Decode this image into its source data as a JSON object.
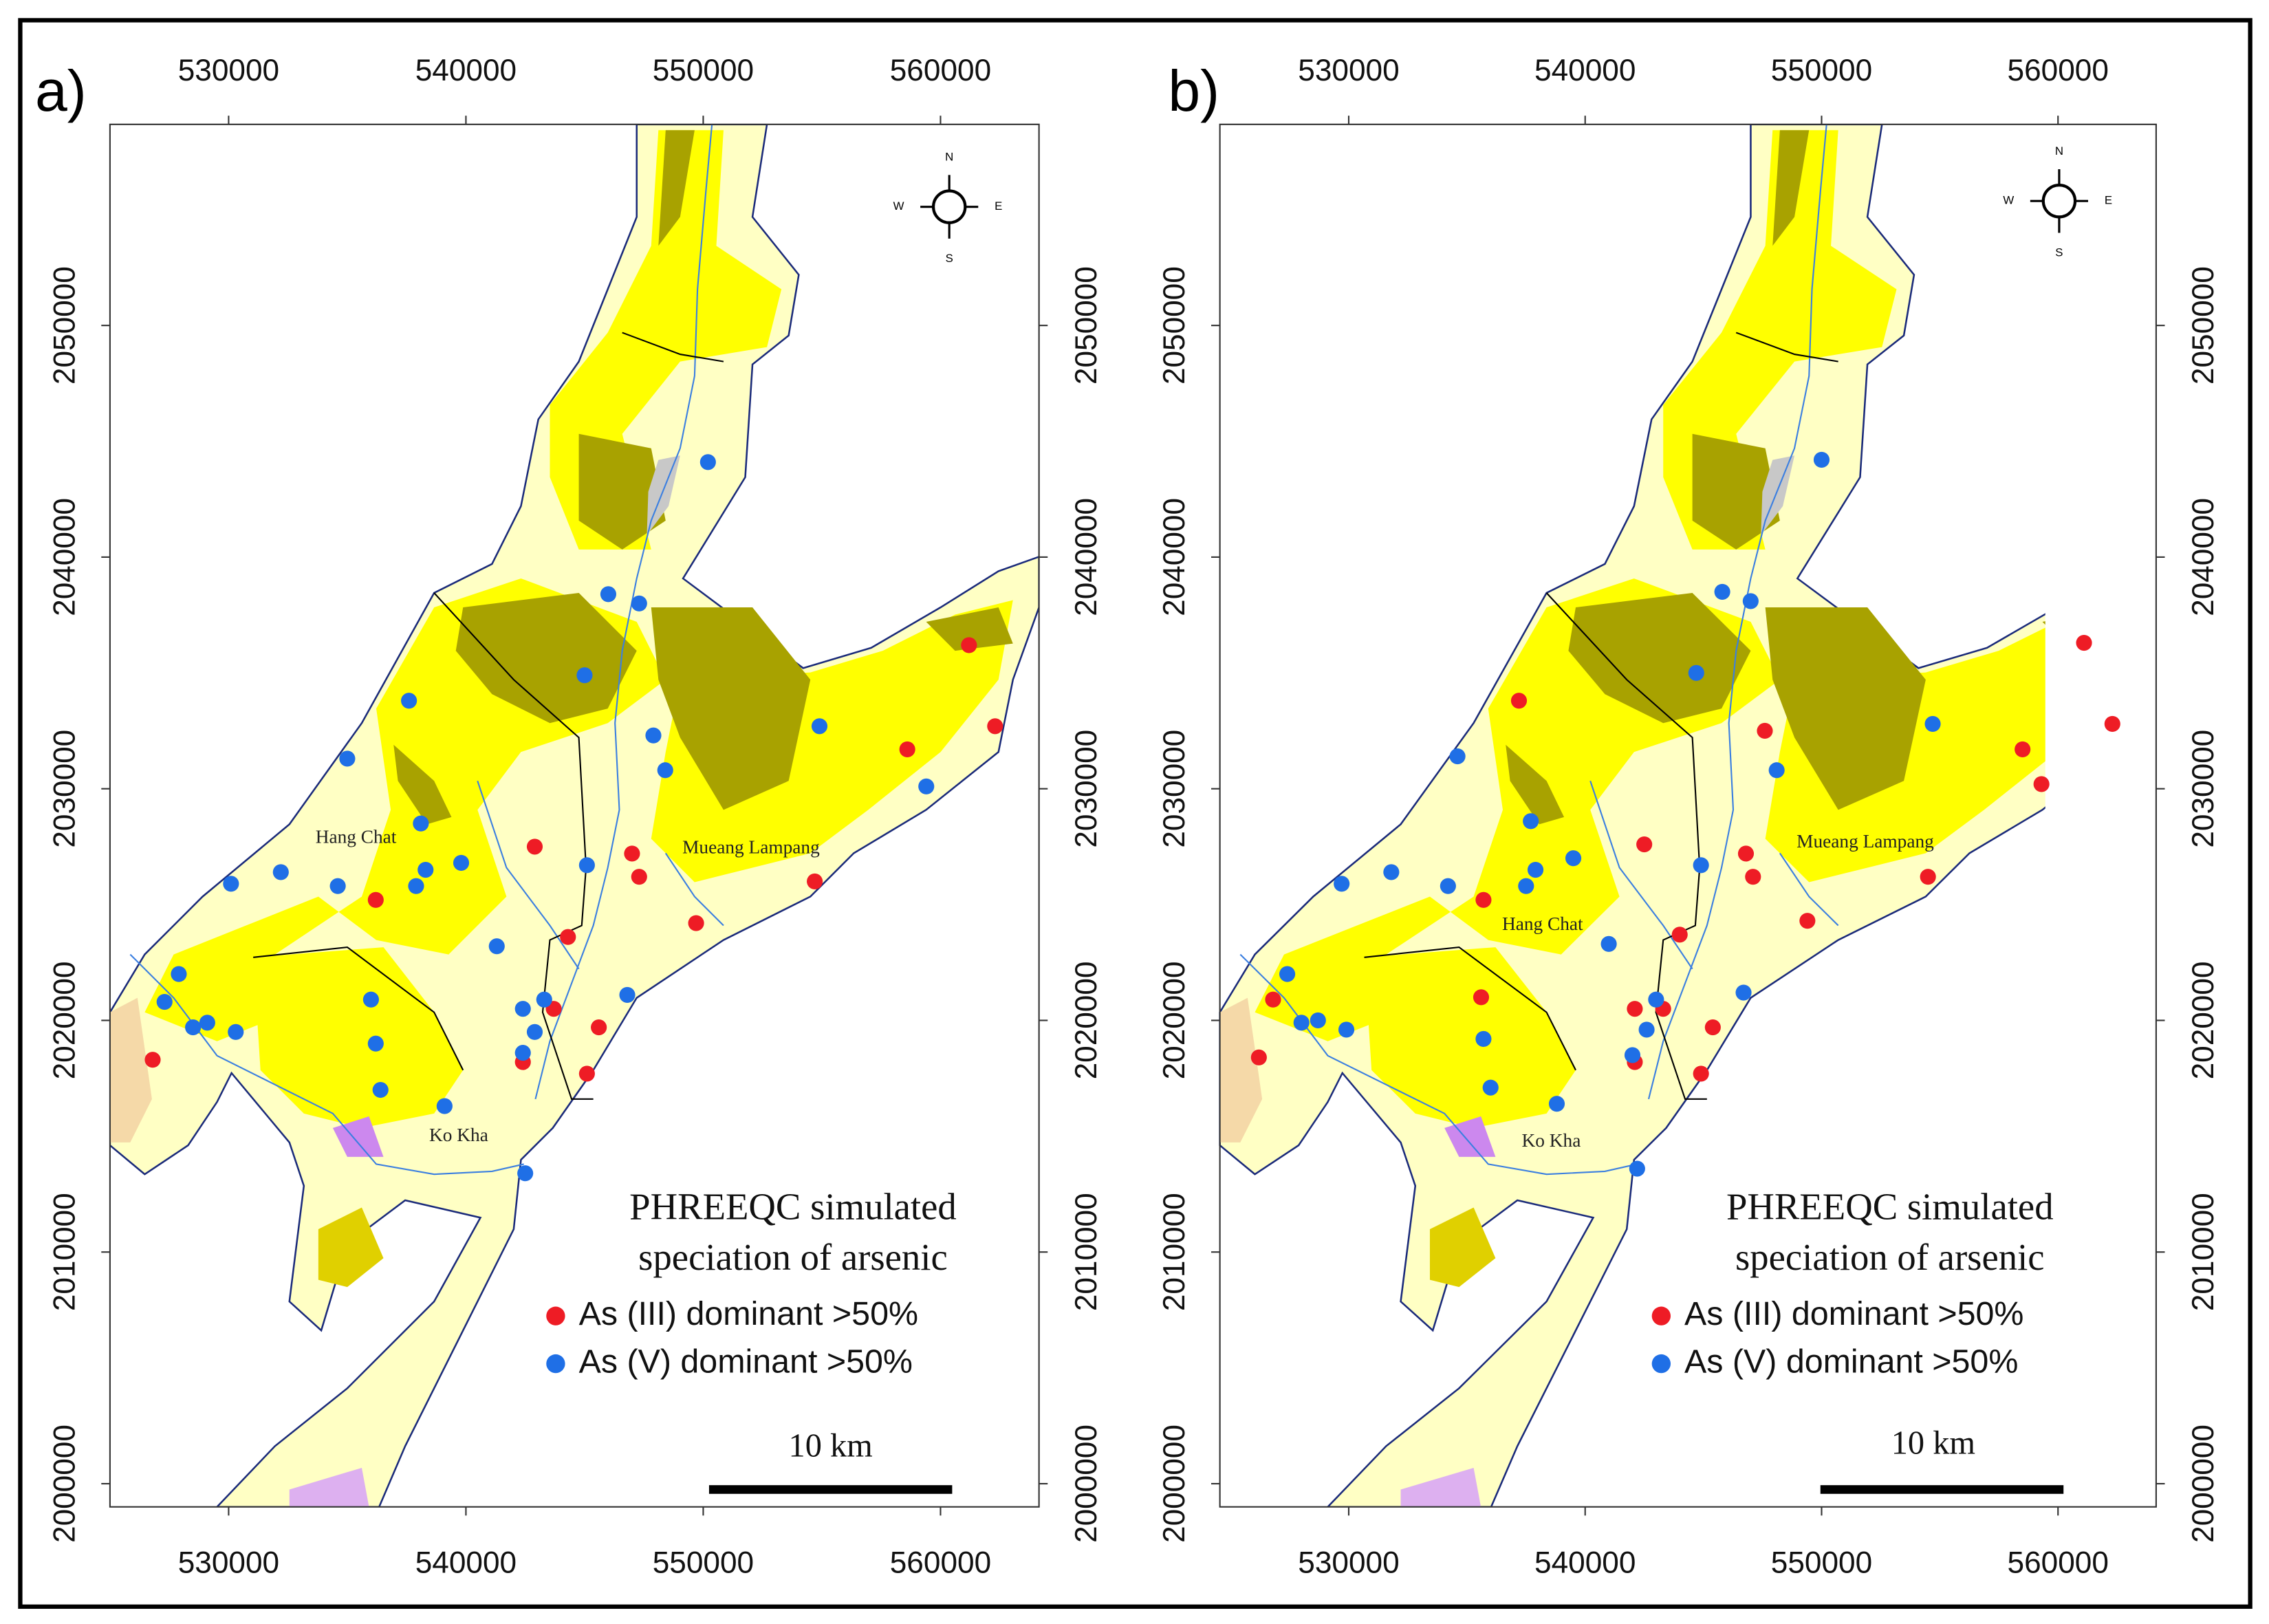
{
  "chart_data": [
    {
      "type": "scatter",
      "panel_label": "a)",
      "title": "PHREEQC simulated speciation of arsenic",
      "xlim": [
        525000,
        564150
      ],
      "ylim": [
        1999000,
        2058680
      ],
      "xticks": [
        530000,
        540000,
        550000,
        560000
      ],
      "yticks": [
        2000000,
        2010000,
        2020000,
        2030000,
        2040000,
        2050000
      ],
      "series": [
        {
          "name": "As (III) dominant >50%",
          "color": "#ee1c25",
          "x": [
            561200,
            562300,
            558600,
            554700,
            549700,
            547300,
            547000,
            542900,
            544300,
            536200,
            543700,
            545600,
            545100,
            542400,
            526800
          ],
          "values": [
            2036200,
            2032700,
            2031700,
            2026000,
            2024200,
            2026200,
            2027200,
            2027500,
            2023600,
            2025200,
            2020500,
            2019700,
            2017700,
            2018200,
            2018300
          ]
        },
        {
          "name": "As (V) dominant >50%",
          "color": "#1f6fe6",
          "x": [
            550200,
            546000,
            547300,
            545000,
            547900,
            548400,
            554900,
            559400,
            537600,
            535000,
            538100,
            538300,
            537900,
            539800,
            545100,
            532200,
            530100,
            534600,
            541300,
            536000,
            543300,
            542400,
            542900,
            546800,
            536200,
            536400,
            539100,
            542500,
            527900,
            527300,
            528500,
            529100,
            530300,
            542400
          ],
          "values": [
            2044100,
            2038400,
            2038000,
            2034900,
            2032300,
            2030800,
            2032700,
            2030100,
            2033800,
            2031300,
            2028500,
            2026500,
            2025800,
            2026800,
            2026700,
            2026400,
            2025900,
            2025800,
            2023200,
            2020900,
            2020900,
            2020500,
            2019500,
            2021100,
            2019000,
            2017000,
            2016300,
            2013400,
            2022000,
            2020800,
            2019700,
            2019900,
            2019500,
            2018600
          ]
        }
      ],
      "annotations": [
        "Hang Chat",
        "Mueang Lampang",
        "Ko Kha"
      ],
      "compass": [
        "N",
        "E",
        "S",
        "W"
      ],
      "scale_bar": "10 km"
    },
    {
      "type": "scatter",
      "panel_label": "b)",
      "title": "PHREEQC simulated speciation of arsenic",
      "xlim": [
        524550,
        564150
      ],
      "ylim": [
        1999000,
        2058680
      ],
      "xticks": [
        530000,
        540000,
        550000,
        560000
      ],
      "yticks": [
        2000000,
        2010000,
        2020000,
        2030000,
        2040000,
        2050000
      ],
      "series": [
        {
          "name": "As (III) dominant >50%",
          "color": "#ee1c25",
          "x": [
            561100,
            562300,
            558500,
            559300,
            554500,
            549400,
            547100,
            546800,
            542500,
            544000,
            547600,
            537200,
            535700,
            535600,
            526800,
            526200,
            542100,
            543300,
            545400,
            544900,
            542100
          ],
          "values": [
            2036300,
            2032800,
            2031700,
            2030200,
            2026200,
            2024300,
            2026200,
            2027200,
            2027600,
            2023700,
            2032500,
            2033800,
            2025200,
            2021000,
            2020900,
            2018400,
            2020500,
            2020500,
            2019700,
            2017700,
            2018200
          ]
        },
        {
          "name": "As (V) dominant >50%",
          "color": "#1f6fe6",
          "x": [
            550000,
            545800,
            547000,
            544700,
            548100,
            554700,
            534600,
            537700,
            537900,
            537500,
            539500,
            544900,
            531800,
            529700,
            534200,
            541000,
            535700,
            536000,
            538800,
            542200,
            546700,
            543000,
            542600,
            527400,
            528000,
            528700,
            529900,
            542000
          ],
          "values": [
            2044200,
            2038500,
            2038100,
            2035000,
            2030800,
            2032800,
            2031400,
            2028600,
            2026500,
            2025800,
            2027000,
            2026700,
            2026400,
            2025900,
            2025800,
            2023300,
            2019200,
            2017100,
            2016400,
            2013600,
            2021200,
            2020900,
            2019600,
            2022000,
            2019900,
            2020000,
            2019600,
            2018500
          ]
        }
      ],
      "annotations": [
        "Hang Chat",
        "Mueang Lampang",
        "Ko Kha"
      ],
      "compass": [
        "N",
        "E",
        "S",
        "W"
      ],
      "scale_bar": "10 km"
    }
  ]
}
